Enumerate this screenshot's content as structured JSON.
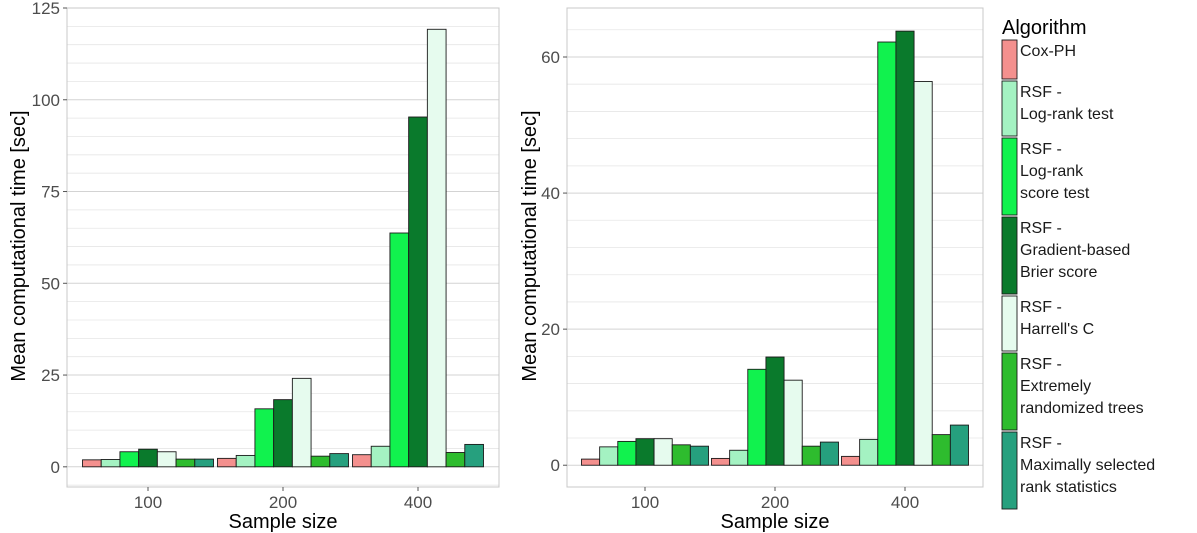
{
  "legend": {
    "title": "Algorithm",
    "items": [
      {
        "lines": [
          "Cox-PH"
        ],
        "color": "#f4908e"
      },
      {
        "lines": [
          "RSF -",
          "Log-rank test"
        ],
        "color": "#a4f2c2"
      },
      {
        "lines": [
          "RSF -",
          "Log-rank",
          "score test"
        ],
        "color": "#11f24e"
      },
      {
        "lines": [
          "RSF -",
          "Gradient-based",
          "Brier score"
        ],
        "color": "#0a7a2c"
      },
      {
        "lines": [
          "RSF -",
          "Harrell's C"
        ],
        "color": "#e6fbee"
      },
      {
        "lines": [
          "RSF -",
          "Extremely",
          "randomized trees"
        ],
        "color": "#2ebc2e"
      },
      {
        "lines": [
          "RSF -",
          "Maximally selected",
          "rank statistics"
        ],
        "color": "#26a07e"
      }
    ]
  },
  "chart_data": [
    {
      "type": "bar",
      "xlabel": "Sample size",
      "ylabel": "Mean computational time [sec]",
      "categories": [
        "100",
        "200",
        "400"
      ],
      "ylim": [
        -5.5,
        125
      ],
      "yticks": [
        0,
        25,
        50,
        75,
        100,
        125
      ],
      "ytick_labels": [
        "0",
        "25",
        "50",
        "75",
        "100",
        "125"
      ],
      "grid": true,
      "series": [
        {
          "name": "Cox-PH",
          "values": [
            1.9,
            2.3,
            3.3
          ]
        },
        {
          "name": "RSF - Log-rank test",
          "values": [
            2.0,
            3.1,
            5.6
          ]
        },
        {
          "name": "RSF - Log-rank score test",
          "values": [
            4.1,
            15.8,
            63.7
          ]
        },
        {
          "name": "RSF - Gradient-based Brier score",
          "values": [
            4.8,
            18.3,
            95.3
          ]
        },
        {
          "name": "RSF - Harrell's C",
          "values": [
            4.1,
            24.1,
            119.2
          ]
        },
        {
          "name": "RSF - Extremely randomized trees",
          "values": [
            2.1,
            2.9,
            3.9
          ]
        },
        {
          "name": "RSF - Maximally selected rank statistics",
          "values": [
            2.1,
            3.6,
            6.1
          ]
        }
      ]
    },
    {
      "type": "bar",
      "xlabel": "Sample size",
      "ylabel": "Mean computational time [sec]",
      "categories": [
        "100",
        "200",
        "400"
      ],
      "ylim": [
        -3.2,
        67.2
      ],
      "yticks": [
        0,
        20,
        40,
        60
      ],
      "ytick_labels": [
        "0",
        "20",
        "40",
        "60"
      ],
      "grid": true,
      "series": [
        {
          "name": "Cox-PH",
          "values": [
            0.9,
            1.0,
            1.3
          ]
        },
        {
          "name": "RSF - Log-rank test",
          "values": [
            2.7,
            2.2,
            3.8
          ]
        },
        {
          "name": "RSF - Log-rank score test",
          "values": [
            3.5,
            14.1,
            62.2
          ]
        },
        {
          "name": "RSF - Gradient-based Brier score",
          "values": [
            3.9,
            15.9,
            63.8
          ]
        },
        {
          "name": "RSF - Harrell's C",
          "values": [
            3.9,
            12.5,
            56.4
          ]
        },
        {
          "name": "RSF - Extremely randomized trees",
          "values": [
            3.0,
            2.8,
            4.5
          ]
        },
        {
          "name": "RSF - Maximally selected rank statistics",
          "values": [
            2.8,
            3.4,
            5.9
          ]
        }
      ]
    }
  ]
}
